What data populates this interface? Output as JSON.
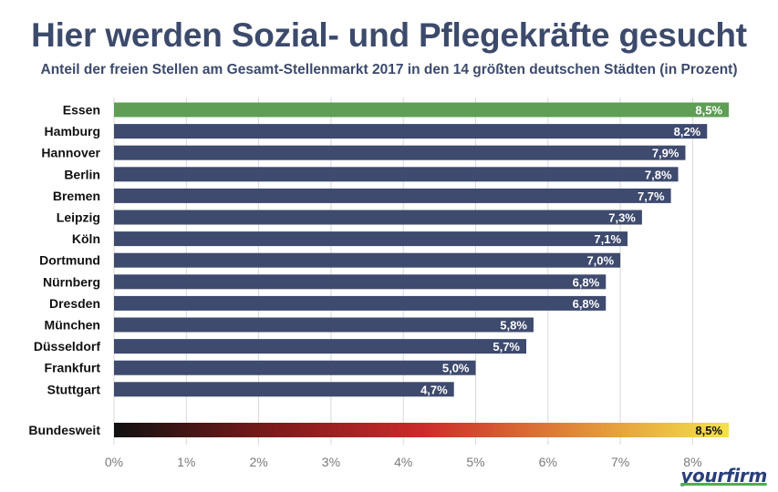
{
  "colors": {
    "bar": "#3e4a6e",
    "highlight": "#5e9e55",
    "gradient": [
      "#111111",
      "#7a1a1a",
      "#cc2a2a",
      "#e6a23c",
      "#f4e24a"
    ],
    "grid": "#d9d9d9",
    "title": "#3c4a6b"
  },
  "chart_data": {
    "type": "bar",
    "orientation": "horizontal",
    "title": "Hier werden Sozial- und Pflegekräfte gesucht",
    "subtitle": "Anteil der freien Stellen am Gesamt-Stellenmarkt 2017 in den 14 größten deutschen  Städten (in Prozent)",
    "categories": [
      "Essen",
      "Hamburg",
      "Hannover",
      "Berlin",
      "Bremen",
      "Leipzig",
      "Köln",
      "Dortmund",
      "Nürnberg",
      "Dresden",
      "München",
      "Düsseldorf",
      "Frankfurt",
      "Stuttgart"
    ],
    "values": [
      8.5,
      8.2,
      7.9,
      7.8,
      7.7,
      7.3,
      7.1,
      7.0,
      6.8,
      6.8,
      5.8,
      5.7,
      5.0,
      4.7
    ],
    "value_labels": [
      "8,5%",
      "8,2%",
      "7,9%",
      "7,8%",
      "7,7%",
      "7,3%",
      "7,1%",
      "7,0%",
      "6,8%",
      "6,8%",
      "5,8%",
      "5,7%",
      "5,0%",
      "4,7%"
    ],
    "highlight_category": "Essen",
    "summary": {
      "category": "Bundesweit",
      "value": 8.5,
      "value_label": "8,5%"
    },
    "xlim": [
      0,
      8.5
    ],
    "xticks": [
      0,
      1,
      2,
      3,
      4,
      5,
      6,
      7,
      8
    ],
    "xtick_labels": [
      "0%",
      "1%",
      "2%",
      "3%",
      "4%",
      "5%",
      "6%",
      "7%",
      "8%"
    ],
    "grid": true,
    "xlabel": "",
    "ylabel": ""
  },
  "brand": {
    "logo_text": "yourfirm"
  }
}
